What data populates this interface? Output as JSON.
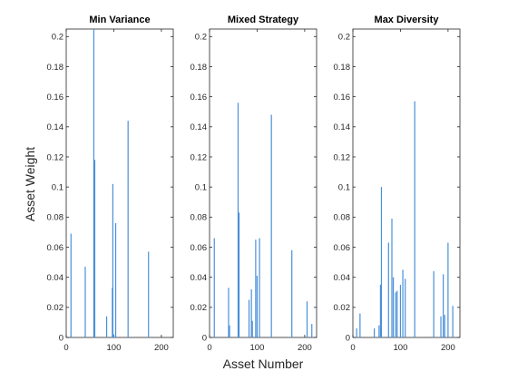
{
  "figure": {
    "xlabel": "Asset Number",
    "ylabel": "Asset Weight"
  },
  "chart_data": [
    {
      "type": "bar",
      "title": "Min Variance",
      "xlim": [
        0,
        225
      ],
      "ylim": [
        0,
        0.205
      ],
      "xticks": [
        0,
        100,
        200
      ],
      "yticks": [
        0,
        0.02,
        0.04,
        0.06,
        0.08,
        0.1,
        0.12,
        0.14,
        0.16,
        0.18,
        0.2
      ],
      "bar_color": "#4a90d9",
      "x": [
        10,
        40,
        58,
        60,
        85,
        97,
        98,
        100,
        104,
        130,
        173
      ],
      "values": [
        0.069,
        0.047,
        0.205,
        0.118,
        0.014,
        0.033,
        0.102,
        0.002,
        0.076,
        0.144,
        0.057
      ]
    },
    {
      "type": "bar",
      "title": "Mixed Strategy",
      "xlim": [
        0,
        225
      ],
      "ylim": [
        0,
        0.205
      ],
      "xticks": [
        0,
        100,
        200
      ],
      "yticks": [
        0,
        0.02,
        0.04,
        0.06,
        0.08,
        0.1,
        0.12,
        0.14,
        0.16,
        0.18,
        0.2
      ],
      "bar_color": "#4a90d9",
      "x": [
        10,
        40,
        42,
        60,
        62,
        83,
        88,
        90,
        97,
        100,
        105,
        130,
        173,
        205,
        215
      ],
      "values": [
        0.066,
        0.033,
        0.008,
        0.156,
        0.083,
        0.025,
        0.032,
        0.011,
        0.065,
        0.041,
        0.066,
        0.148,
        0.058,
        0.024,
        0.009
      ]
    },
    {
      "type": "bar",
      "title": "Max Diversity",
      "xlim": [
        0,
        225
      ],
      "ylim": [
        0,
        0.205
      ],
      "xticks": [
        0,
        100,
        200
      ],
      "yticks": [
        0,
        0.02,
        0.04,
        0.06,
        0.08,
        0.1,
        0.12,
        0.14,
        0.16,
        0.18,
        0.2
      ],
      "bar_color": "#4a90d9",
      "x": [
        8,
        15,
        45,
        55,
        58,
        60,
        75,
        82,
        85,
        90,
        93,
        100,
        105,
        110,
        130,
        170,
        185,
        190,
        193,
        200,
        210
      ],
      "values": [
        0.006,
        0.016,
        0.006,
        0.008,
        0.035,
        0.1,
        0.063,
        0.079,
        0.04,
        0.03,
        0.031,
        0.035,
        0.045,
        0.039,
        0.157,
        0.044,
        0.014,
        0.042,
        0.015,
        0.063,
        0.021
      ]
    }
  ]
}
